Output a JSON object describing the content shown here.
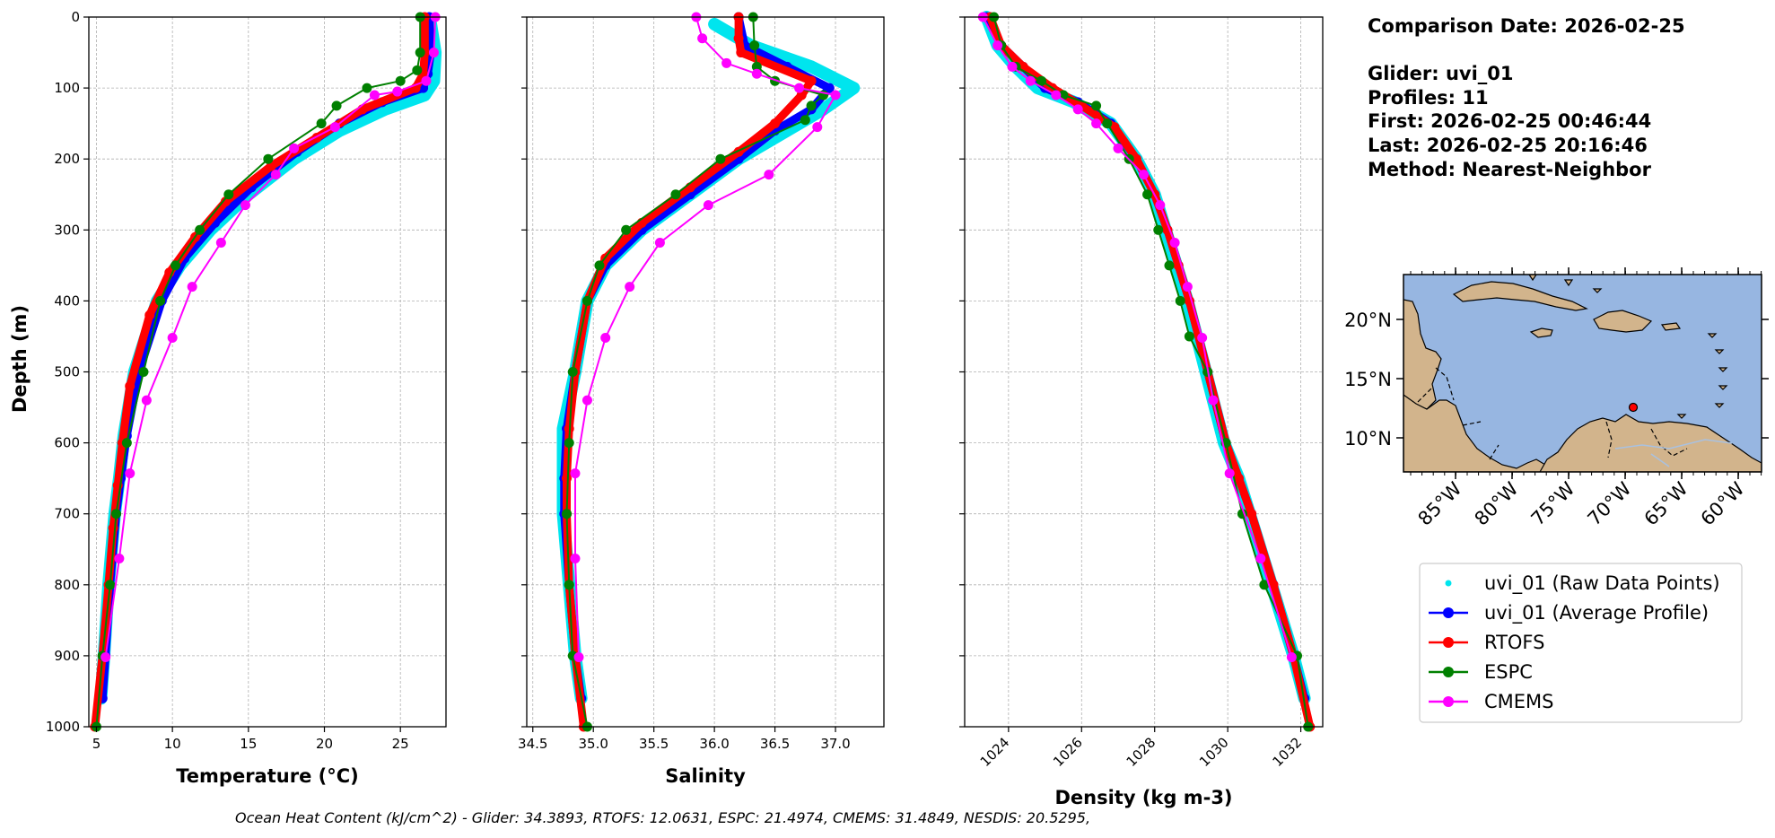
{
  "chart_data": [
    {
      "type": "line",
      "xlabel": "Temperature (°C)",
      "ylabel": "Depth (m)",
      "xlim": [
        4.5,
        28
      ],
      "ylim": [
        1000,
        0
      ],
      "x_ticks": [
        5,
        10,
        15,
        20,
        25
      ],
      "y_ticks": [
        0,
        100,
        200,
        300,
        400,
        500,
        600,
        700,
        800,
        900,
        1000
      ],
      "grid": true,
      "series": [
        {
          "name": "uvi_01 (Raw Data Points)",
          "color": "#00e5ee",
          "style": "points",
          "x": [
            27.0,
            27.3,
            27.2,
            26.6,
            24.0,
            21.0,
            18.0,
            15.0,
            12.5,
            10.5,
            9.0,
            7.5,
            6.8,
            6.5,
            6.2,
            5.8,
            5.5,
            5.3
          ],
          "y": [
            10,
            50,
            90,
            110,
            130,
            160,
            200,
            250,
            300,
            350,
            400,
            500,
            590,
            650,
            700,
            800,
            900,
            960
          ]
        },
        {
          "name": "uvi_01 (Average Profile)",
          "color": "#0000ff",
          "style": "thick",
          "x": [
            26.9,
            27.0,
            26.8,
            26.5,
            23.8,
            21.0,
            18.2,
            15.2,
            12.8,
            10.8,
            9.3,
            7.8,
            7.0,
            6.6,
            6.3,
            5.9,
            5.6,
            5.4
          ],
          "y": [
            0,
            50,
            80,
            100,
            120,
            150,
            190,
            240,
            290,
            340,
            400,
            500,
            590,
            650,
            700,
            800,
            900,
            960
          ]
        },
        {
          "name": "RTOFS",
          "color": "#ff0000",
          "style": "thick",
          "x": [
            26.6,
            26.6,
            26.5,
            26.0,
            22.5,
            19.5,
            16.5,
            13.5,
            11.5,
            9.8,
            8.5,
            7.2,
            6.7,
            6.4,
            6.1,
            5.8,
            5.4,
            4.9
          ],
          "y": [
            0,
            50,
            80,
            100,
            130,
            170,
            210,
            260,
            310,
            360,
            420,
            520,
            600,
            660,
            720,
            800,
            900,
            1000
          ]
        },
        {
          "name": "ESPC",
          "color": "#008000",
          "style": "markers",
          "x": [
            26.3,
            26.3,
            26.1,
            25.0,
            22.8,
            20.8,
            19.8,
            16.3,
            13.7,
            11.8,
            10.2,
            9.2,
            8.1,
            7.0,
            6.3,
            5.9,
            5.4,
            5.0
          ],
          "y": [
            0,
            50,
            75,
            90,
            100,
            125,
            150,
            200,
            250,
            300,
            350,
            400,
            500,
            600,
            700,
            800,
            900,
            1000
          ]
        },
        {
          "name": "CMEMS",
          "color": "#ff00ff",
          "style": "markers",
          "x": [
            27.3,
            27.2,
            26.7,
            24.8,
            23.3,
            20.7,
            18.0,
            16.8,
            14.8,
            13.2,
            11.3,
            10.0,
            8.3,
            7.2,
            6.5,
            5.6
          ],
          "y": [
            0,
            50,
            90,
            105,
            110,
            155,
            185,
            222,
            265,
            318,
            380,
            452,
            540,
            643,
            763,
            902
          ]
        }
      ]
    },
    {
      "type": "line",
      "xlabel": "Salinity",
      "ylabel": "",
      "xlim": [
        34.45,
        37.4
      ],
      "ylim": [
        1000,
        0
      ],
      "x_ticks": [
        34.5,
        35.0,
        35.5,
        36.0,
        36.5,
        37.0
      ],
      "y_ticks": [
        0,
        100,
        200,
        300,
        400,
        500,
        600,
        700,
        800,
        900,
        1000
      ],
      "grid": true,
      "series": [
        {
          "name": "uvi_01 (Raw Data Points)",
          "color": "#00e5ee",
          "style": "points",
          "x": [
            36.0,
            36.3,
            36.8,
            37.15,
            36.9,
            36.6,
            36.2,
            35.8,
            35.4,
            35.1,
            34.95,
            34.85,
            34.75,
            34.75,
            34.75,
            34.8,
            34.85,
            34.9
          ],
          "y": [
            10,
            40,
            70,
            100,
            130,
            160,
            200,
            250,
            300,
            350,
            400,
            500,
            580,
            650,
            700,
            800,
            900,
            960
          ]
        },
        {
          "name": "uvi_01 (Average Profile)",
          "color": "#0000ff",
          "style": "thick",
          "x": [
            36.2,
            36.25,
            36.6,
            36.95,
            36.8,
            36.5,
            36.2,
            35.8,
            35.4,
            35.1,
            34.95,
            34.85,
            34.78,
            34.76,
            34.76,
            34.8,
            34.85,
            34.9
          ],
          "y": [
            0,
            40,
            70,
            100,
            130,
            160,
            200,
            250,
            300,
            350,
            400,
            500,
            580,
            650,
            700,
            800,
            900,
            960
          ]
        },
        {
          "name": "RTOFS",
          "color": "#ff0000",
          "style": "thick",
          "x": [
            36.2,
            36.2,
            36.22,
            36.8,
            36.72,
            36.5,
            36.2,
            35.8,
            35.4,
            35.1,
            34.95,
            34.85,
            34.8,
            34.78,
            34.78,
            34.8,
            34.85,
            34.92
          ],
          "y": [
            0,
            30,
            50,
            90,
            110,
            150,
            190,
            240,
            290,
            340,
            400,
            500,
            580,
            650,
            700,
            800,
            900,
            1000
          ]
        },
        {
          "name": "ESPC",
          "color": "#008000",
          "style": "markers",
          "x": [
            36.32,
            36.33,
            36.35,
            36.5,
            36.9,
            36.8,
            36.75,
            36.05,
            35.68,
            35.27,
            35.05,
            34.95,
            34.83,
            34.8,
            34.78,
            34.8,
            34.83,
            34.95
          ],
          "y": [
            0,
            40,
            70,
            90,
            110,
            125,
            145,
            200,
            250,
            300,
            350,
            400,
            500,
            600,
            700,
            800,
            900,
            1000
          ]
        },
        {
          "name": "CMEMS",
          "color": "#ff00ff",
          "style": "markers",
          "x": [
            35.85,
            35.9,
            36.1,
            36.35,
            36.7,
            37.0,
            36.85,
            36.45,
            35.95,
            35.55,
            35.3,
            35.1,
            34.95,
            34.85,
            34.85,
            34.88
          ],
          "y": [
            0,
            30,
            65,
            80,
            100,
            110,
            155,
            222,
            265,
            318,
            380,
            452,
            540,
            643,
            763,
            902
          ]
        }
      ]
    },
    {
      "type": "line",
      "xlabel": "Density (kg m-3)",
      "ylabel": "",
      "xlim": [
        1022.8,
        1032.6
      ],
      "ylim": [
        1000,
        0
      ],
      "x_ticks": [
        1024,
        1026,
        1028,
        1030,
        1032
      ],
      "y_ticks": [
        0,
        100,
        200,
        300,
        400,
        500,
        600,
        700,
        800,
        900,
        1000
      ],
      "grid": true,
      "series": [
        {
          "name": "uvi_01 (Raw Data Points)",
          "color": "#00e5ee",
          "style": "points",
          "x": [
            1023.4,
            1023.7,
            1024.2,
            1024.8,
            1025.8,
            1026.8,
            1027.5,
            1028.0,
            1028.3,
            1028.6,
            1028.9,
            1029.4,
            1029.9,
            1030.3,
            1030.6,
            1031.2,
            1031.8,
            1032.1
          ],
          "y": [
            0,
            40,
            70,
            100,
            120,
            150,
            200,
            250,
            300,
            350,
            400,
            500,
            600,
            650,
            700,
            800,
            900,
            960
          ]
        },
        {
          "name": "uvi_01 (Average Profile)",
          "color": "#0000ff",
          "style": "thick",
          "x": [
            1023.4,
            1023.8,
            1024.4,
            1025.0,
            1025.9,
            1026.8,
            1027.5,
            1028.0,
            1028.35,
            1028.65,
            1028.95,
            1029.45,
            1029.95,
            1030.3,
            1030.65,
            1031.25,
            1031.8,
            1032.1
          ],
          "y": [
            0,
            40,
            70,
            100,
            120,
            150,
            200,
            250,
            300,
            350,
            400,
            500,
            600,
            650,
            700,
            800,
            900,
            960
          ]
        },
        {
          "name": "RTOFS",
          "color": "#ff0000",
          "style": "thick",
          "x": [
            1023.5,
            1023.8,
            1024.4,
            1025.2,
            1026.0,
            1026.9,
            1027.5,
            1028.0,
            1028.35,
            1028.65,
            1028.95,
            1029.45,
            1029.95,
            1030.3,
            1030.65,
            1031.25,
            1031.8,
            1032.25
          ],
          "y": [
            0,
            40,
            70,
            100,
            125,
            155,
            200,
            250,
            300,
            350,
            400,
            500,
            600,
            650,
            700,
            800,
            900,
            1000
          ]
        },
        {
          "name": "ESPC",
          "color": "#008000",
          "style": "markers",
          "x": [
            1023.6,
            1023.8,
            1024.2,
            1024.9,
            1025.5,
            1026.4,
            1026.7,
            1027.3,
            1027.8,
            1028.1,
            1028.4,
            1028.7,
            1028.95,
            1029.45,
            1029.95,
            1030.4,
            1031.0,
            1031.9,
            1032.2
          ],
          "y": [
            0,
            40,
            70,
            90,
            110,
            125,
            150,
            200,
            250,
            300,
            350,
            400,
            450,
            500,
            600,
            700,
            800,
            900,
            1000
          ]
        },
        {
          "name": "CMEMS",
          "color": "#ff00ff",
          "style": "markers",
          "x": [
            1023.3,
            1023.7,
            1024.1,
            1024.6,
            1025.3,
            1025.9,
            1026.4,
            1027.0,
            1027.7,
            1028.15,
            1028.55,
            1028.9,
            1029.3,
            1029.6,
            1030.05,
            1030.9,
            1031.75
          ],
          "y": [
            0,
            40,
            70,
            90,
            110,
            130,
            150,
            185,
            222,
            265,
            318,
            380,
            452,
            540,
            643,
            763,
            902
          ]
        }
      ]
    }
  ],
  "info": {
    "comparison_date": "Comparison Date: 2026-02-25",
    "glider": "Glider: uvi_01",
    "profiles": "Profiles: 11",
    "first": "First: 2026-02-25 00:46:44",
    "last": "Last: 2026-02-25 20:16:46",
    "method": "Method: Nearest-Neighbor"
  },
  "map": {
    "lat_ticks": [
      "20°N",
      "15°N",
      "10°N"
    ],
    "lon_ticks": [
      "85°W",
      "80°W",
      "75°W",
      "70°W",
      "65°W",
      "60°W"
    ],
    "ocean_color": "#97b6e1",
    "land_color": "#d2b48c",
    "glider_color": "#ff0000"
  },
  "legend": [
    {
      "label": "uvi_01 (Raw Data Points)",
      "color": "#00e5ee",
      "style": "point"
    },
    {
      "label": "uvi_01 (Average Profile)",
      "color": "#0000ff",
      "style": "line-marker"
    },
    {
      "label": "RTOFS",
      "color": "#ff0000",
      "style": "line-marker"
    },
    {
      "label": "ESPC",
      "color": "#008000",
      "style": "line-marker"
    },
    {
      "label": "CMEMS",
      "color": "#ff00ff",
      "style": "line-marker"
    }
  ],
  "footnote": "Ocean Heat Content (kJ/cm^2) - Glider: 34.3893,  RTOFS: 12.0631,  ESPC: 21.4974,  CMEMS: 31.4849,  NESDIS: 20.5295,"
}
